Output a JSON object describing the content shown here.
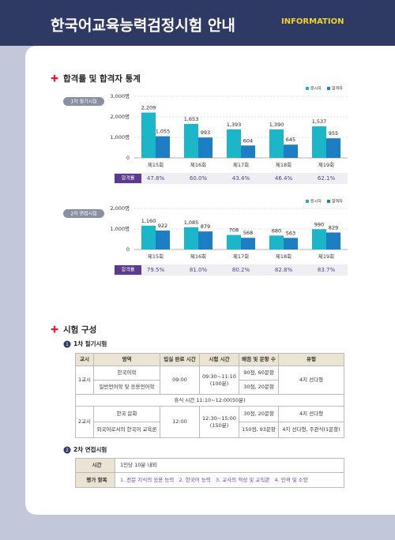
{
  "header": {
    "title": "한국어교육능력검정시험 안내",
    "tag": "INFORMATION"
  },
  "section1": {
    "title": "합격률 및 합격자 통계"
  },
  "chart_data": [
    {
      "type": "bar",
      "label": "1차 필기시험",
      "categories": [
        "제15회",
        "제16회",
        "제17회",
        "제18회",
        "제19회"
      ],
      "series": [
        {
          "name": "응시자",
          "color": "#1db6c9",
          "values": [
            2209,
            1653,
            1393,
            1390,
            1537
          ],
          "value_labels": [
            "2,209",
            "1,653",
            "1,393",
            "1,390",
            "1,537"
          ]
        },
        {
          "name": "합격자",
          "color": "#1e7ec3",
          "values": [
            1055,
            993,
            604,
            645,
            955
          ],
          "value_labels": [
            "1,055",
            "993",
            "604",
            "645",
            "955"
          ]
        }
      ],
      "ylim": [
        0,
        3000
      ],
      "yticks": [
        0,
        {
          "value": 1000,
          "label": "1,000명"
        },
        {
          "value": 2000,
          "label": "2,000명"
        },
        {
          "value": 3000,
          "label": "3,000명"
        }
      ],
      "grid": true,
      "rate_label": "합격률",
      "rates": [
        "47.8%",
        "60.0%",
        "43.4%",
        "46.4%",
        "62.1%"
      ]
    },
    {
      "type": "bar",
      "label": "2차 면접시험",
      "categories": [
        "제15회",
        "제16회",
        "제17회",
        "제18회",
        "제19회"
      ],
      "series": [
        {
          "name": "응시자",
          "color": "#1db6c9",
          "values": [
            1160,
            1085,
            708,
            680,
            990
          ],
          "value_labels": [
            "1,160",
            "1,085",
            "708",
            "680",
            "990"
          ]
        },
        {
          "name": "합격자",
          "color": "#1e7ec3",
          "values": [
            922,
            879,
            568,
            563,
            829
          ]
        }
      ],
      "ylim": [
        0,
        2000
      ],
      "yticks": [
        0,
        {
          "value": 1000,
          "label": "1,000명"
        },
        {
          "value": 2000,
          "label": "2,000명"
        }
      ],
      "grid": true,
      "rate_label": "합격률",
      "rates": [
        "79.5%",
        "81.0%",
        "80.2%",
        "82.8%",
        "83.7%"
      ]
    }
  ],
  "section2": {
    "title": "시험 구성",
    "sub1": "1차 필기시험",
    "sub2": "2차 면접시험"
  },
  "table1": {
    "header": [
      "교시",
      "영역",
      "입실 완료 시간",
      "시험 시간",
      "배점 및 문항 수",
      "유형"
    ],
    "rows": [
      [
        "1교시",
        "한국어학",
        "09:00",
        "09:30~11:10\n(100분)",
        "90점, 60문항",
        "4지 선다형"
      ],
      [
        "일반언어학 및 응용언어학",
        "30점, 20문항"
      ],
      [
        "휴식 시간 11:10~12:00(50분)"
      ],
      [
        "2교시",
        "한국 문화",
        "12:00",
        "12:30~15:00\n(150분)",
        "30점, 20문항",
        "4지 선다형"
      ],
      [
        "외국어로서의 한국어 교육론",
        "150점, 93문항",
        "4지 선다형, 주관식(1문항)"
      ]
    ]
  },
  "table2": {
    "rows": [
      [
        "시간",
        "1인당 10분 내외"
      ],
      [
        "평가 항목",
        "1. 전문 지식의 응용 능력",
        "2. 한국어 능력",
        "3. 교사의 적성 및 교직관",
        "4. 인격 및 소양"
      ]
    ]
  }
}
